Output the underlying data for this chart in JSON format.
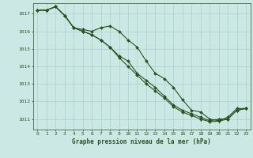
{
  "title": "Graphe pression niveau de la mer (hPa)",
  "background_color": "#cce8e4",
  "grid_color": "#aad0cc",
  "line_color": "#2a5220",
  "xlim": [
    -0.5,
    23.5
  ],
  "ylim": [
    1010.4,
    1017.6
  ],
  "yticks": [
    1011,
    1012,
    1013,
    1014,
    1015,
    1016,
    1017
  ],
  "xticks": [
    0,
    1,
    2,
    3,
    4,
    5,
    6,
    7,
    8,
    9,
    10,
    11,
    12,
    13,
    14,
    15,
    16,
    17,
    18,
    19,
    20,
    21,
    22,
    23
  ],
  "series": [
    {
      "x": [
        0,
        1,
        2,
        3,
        4,
        5,
        6,
        7,
        8,
        9,
        10,
        11,
        12,
        13,
        14,
        15,
        16,
        17,
        18,
        19,
        20,
        21,
        22,
        23
      ],
      "y": [
        1017.2,
        1017.2,
        1017.4,
        1016.9,
        1016.2,
        1016.1,
        1016.0,
        1016.2,
        1016.3,
        1016.0,
        1015.5,
        1015.1,
        1014.3,
        1013.6,
        1013.3,
        1012.8,
        1012.1,
        1011.5,
        1011.4,
        1011.0,
        1010.9,
        1011.1,
        1011.6,
        1011.6
      ]
    },
    {
      "x": [
        0,
        1,
        2,
        3,
        4,
        5,
        6,
        7,
        8,
        9,
        10,
        11,
        12,
        13,
        14,
        15,
        16,
        17,
        18,
        19,
        20,
        21,
        22,
        23
      ],
      "y": [
        1017.2,
        1017.2,
        1017.4,
        1016.9,
        1016.2,
        1016.0,
        1015.8,
        1015.5,
        1015.1,
        1014.6,
        1014.3,
        1013.6,
        1013.2,
        1012.8,
        1012.3,
        1011.8,
        1011.5,
        1011.3,
        1011.1,
        1010.9,
        1011.0,
        1011.0,
        1011.5,
        1011.6
      ]
    },
    {
      "x": [
        0,
        1,
        2,
        3,
        4,
        5,
        6,
        7,
        8,
        9,
        10,
        11,
        12,
        13,
        14,
        15,
        16,
        17,
        18,
        19,
        20,
        21,
        22,
        23
      ],
      "y": [
        1017.2,
        1017.2,
        1017.4,
        1016.9,
        1016.2,
        1016.0,
        1015.8,
        1015.5,
        1015.1,
        1014.5,
        1014.0,
        1013.5,
        1013.0,
        1012.6,
        1012.2,
        1011.7,
        1011.4,
        1011.2,
        1011.0,
        1010.85,
        1010.88,
        1011.0,
        1011.5,
        1011.6
      ]
    }
  ]
}
